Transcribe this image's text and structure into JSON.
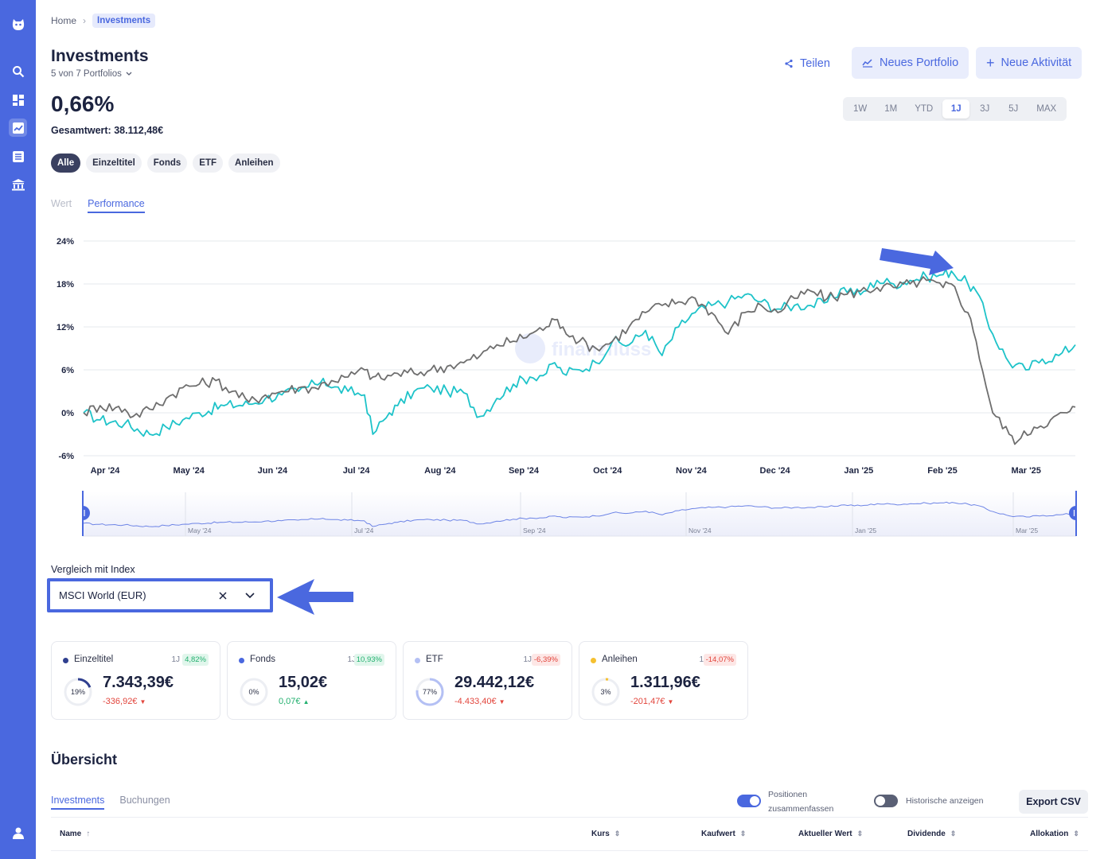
{
  "breadcrumb": {
    "home": "Home",
    "current": "Investments"
  },
  "header": {
    "title": "Investments",
    "portfolio_selector": "5 von 7 Portfolios",
    "share_label": "Teilen",
    "new_portfolio_label": "Neues Portfolio",
    "new_activity_label": "Neue Aktivität"
  },
  "summary": {
    "performance": "0,66%",
    "total_value": "Gesamtwert: 38.112,48€"
  },
  "time_ranges": [
    "1W",
    "1M",
    "YTD",
    "1J",
    "3J",
    "5J",
    "MAX"
  ],
  "selected_time_range": "1J",
  "filters": [
    "Alle",
    "Einzeltitel",
    "Fonds",
    "ETF",
    "Anleihen"
  ],
  "selected_filter": "Alle",
  "chart_tabs": {
    "value": "Wert",
    "performance": "Performance"
  },
  "watermark": "finanzfluss",
  "chart_data": {
    "type": "line",
    "y_ticks": [
      "24%",
      "18%",
      "12%",
      "6%",
      "0%",
      "-6%"
    ],
    "ylim": [
      -6,
      24
    ],
    "x_ticks": [
      "Apr '24",
      "May '24",
      "Jun '24",
      "Jul '24",
      "Aug '24",
      "Sep '24",
      "Oct '24",
      "Nov '24",
      "Dec '24",
      "Jan '25",
      "Feb '25",
      "Mar '25"
    ],
    "navigator_ticks": [
      "May '24",
      "Jul '24",
      "Sep '24",
      "Nov '24",
      "Jan '25",
      "Mar '25"
    ],
    "series": [
      {
        "color": "#1ec3c9",
        "points": [
          [
            0,
            0
          ],
          [
            2,
            -1
          ],
          [
            5,
            -1.5
          ],
          [
            8,
            -3
          ],
          [
            10,
            -2
          ],
          [
            12,
            -1
          ],
          [
            14,
            0
          ],
          [
            17,
            1
          ],
          [
            20,
            1.2
          ],
          [
            22,
            2
          ],
          [
            24,
            2.5
          ],
          [
            26,
            3
          ],
          [
            28,
            4
          ],
          [
            29,
            4.8
          ],
          [
            30,
            3.5
          ],
          [
            32,
            3
          ],
          [
            34,
            2.5
          ],
          [
            35,
            -3
          ],
          [
            37,
            0
          ],
          [
            38,
            1
          ],
          [
            40,
            3
          ],
          [
            42,
            3.5
          ],
          [
            44,
            3
          ],
          [
            46,
            2.8
          ],
          [
            48,
            -0.5
          ],
          [
            50,
            2
          ],
          [
            52,
            4
          ],
          [
            54,
            5
          ],
          [
            56,
            5.5
          ],
          [
            57,
            7
          ],
          [
            58,
            5.5
          ],
          [
            60,
            6
          ],
          [
            62,
            7
          ],
          [
            64,
            10
          ],
          [
            66,
            9.5
          ],
          [
            68,
            11.5
          ],
          [
            70,
            8
          ],
          [
            72,
            12
          ],
          [
            74,
            14
          ],
          [
            76,
            15
          ],
          [
            78,
            15.5
          ],
          [
            80,
            16.5
          ],
          [
            82,
            15.5
          ],
          [
            84,
            14.5
          ],
          [
            86,
            15
          ],
          [
            88,
            15
          ],
          [
            90,
            15.5
          ],
          [
            92,
            17.5
          ],
          [
            94,
            16.5
          ],
          [
            96,
            18.5
          ],
          [
            98,
            18
          ],
          [
            100,
            18.5
          ],
          [
            102,
            19
          ],
          [
            104,
            19.3
          ],
          [
            105,
            19.8
          ],
          [
            107,
            18
          ],
          [
            108,
            17
          ],
          [
            110,
            11
          ],
          [
            112,
            7
          ],
          [
            114,
            6
          ],
          [
            116,
            7.5
          ],
          [
            118,
            8
          ],
          [
            120,
            9.5
          ]
        ]
      },
      {
        "color": "#6e6e6e",
        "points": [
          [
            0,
            0
          ],
          [
            2,
            1
          ],
          [
            5,
            0.5
          ],
          [
            6,
            -0.5
          ],
          [
            8,
            0.5
          ],
          [
            10,
            2
          ],
          [
            12,
            3.5
          ],
          [
            14,
            4
          ],
          [
            16,
            4.5
          ],
          [
            18,
            3
          ],
          [
            20,
            1.5
          ],
          [
            22,
            2.5
          ],
          [
            24,
            3
          ],
          [
            26,
            3.5
          ],
          [
            28,
            3.5
          ],
          [
            30,
            4.5
          ],
          [
            32,
            5
          ],
          [
            34,
            6
          ],
          [
            35,
            5
          ],
          [
            36,
            4.8
          ],
          [
            38,
            5.5
          ],
          [
            40,
            5.5
          ],
          [
            42,
            6
          ],
          [
            44,
            6.5
          ],
          [
            46,
            7
          ],
          [
            48,
            8
          ],
          [
            50,
            9.5
          ],
          [
            52,
            10
          ],
          [
            54,
            11
          ],
          [
            56,
            12
          ],
          [
            57,
            13
          ],
          [
            58,
            12
          ],
          [
            60,
            10
          ],
          [
            62,
            9
          ],
          [
            64,
            10
          ],
          [
            66,
            12
          ],
          [
            68,
            14
          ],
          [
            70,
            15
          ],
          [
            72,
            15.5
          ],
          [
            74,
            16
          ],
          [
            76,
            14
          ],
          [
            78,
            11
          ],
          [
            80,
            14
          ],
          [
            82,
            15
          ],
          [
            84,
            14
          ],
          [
            86,
            16
          ],
          [
            88,
            17
          ],
          [
            90,
            16
          ],
          [
            92,
            16.5
          ],
          [
            94,
            17
          ],
          [
            96,
            17.5
          ],
          [
            98,
            17.5
          ],
          [
            100,
            18
          ],
          [
            102,
            18.5
          ],
          [
            104,
            17.5
          ],
          [
            105,
            18
          ],
          [
            107,
            14
          ],
          [
            108,
            10
          ],
          [
            110,
            0
          ],
          [
            112,
            -3
          ],
          [
            113,
            -4
          ],
          [
            115,
            -2
          ],
          [
            117,
            -1
          ],
          [
            119,
            0
          ],
          [
            120,
            0.8
          ]
        ]
      }
    ]
  },
  "index_compare": {
    "label": "Vergleich mit Index",
    "value": "MSCI World (EUR)"
  },
  "cards": [
    {
      "name": "Einzeltitel",
      "color": "#2f3f8f",
      "period": "1J",
      "pct": "4,82%",
      "pct_positive": true,
      "allocation": "19%",
      "allocation_fraction": 0.19,
      "value": "7.343,39€",
      "diff": "-336,92€",
      "diff_positive": false
    },
    {
      "name": "Fonds",
      "color": "#4a68df",
      "period": "1J",
      "pct": "10,93%",
      "pct_positive": true,
      "allocation": "0%",
      "allocation_fraction": 0.0,
      "value": "15,02€",
      "diff": "0,07€",
      "diff_positive": true
    },
    {
      "name": "ETF",
      "color": "#b4c0f4",
      "period": "1J",
      "pct": "-6,39%",
      "pct_positive": false,
      "allocation": "77%",
      "allocation_fraction": 0.77,
      "value": "29.442,12€",
      "diff": "-4.433,40€",
      "diff_positive": false
    },
    {
      "name": "Anleihen",
      "color": "#f5c030",
      "period": "1J",
      "pct": "-14,07%",
      "pct_positive": false,
      "allocation": "3%",
      "allocation_fraction": 0.03,
      "value": "1.311,96€",
      "diff": "-201,47€",
      "diff_positive": false
    }
  ],
  "overview": {
    "title": "Übersicht",
    "tabs": [
      "Investments",
      "Buchungen"
    ],
    "toggle_positions": "Positionen zusammenfassen",
    "toggle_positions_on": true,
    "toggle_historic": "Historische anzeigen",
    "toggle_historic_on": false,
    "export_label": "Export CSV",
    "columns": [
      "Name",
      "Kurs",
      "Kaufwert",
      "Aktueller Wert",
      "Dividende",
      "Allokation"
    ]
  },
  "icons": [
    "logo-icon",
    "search-icon",
    "dashboard-icon",
    "chart-icon",
    "list-icon",
    "bank-icon",
    "user-icon"
  ],
  "colors": {
    "accent": "#4a68df",
    "sidebar": "#4a68df",
    "benchmark": "#1ec3c9",
    "portfolio": "#6e6e6e"
  }
}
